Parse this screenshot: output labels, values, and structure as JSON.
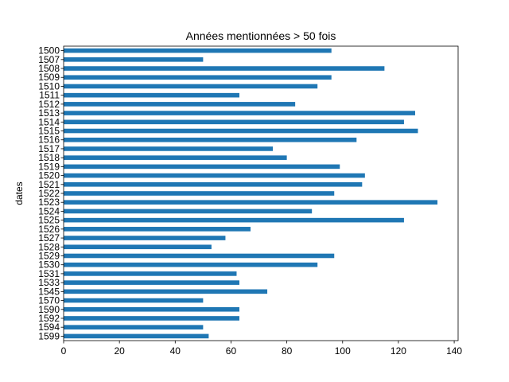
{
  "chart_data": {
    "type": "bar",
    "orientation": "horizontal",
    "title": "Années mentionnées > 50 fois",
    "ylabel": "dates",
    "xlabel": "",
    "xlim": [
      0,
      141.4
    ],
    "xticks": [
      0,
      20,
      40,
      60,
      80,
      100,
      120,
      140
    ],
    "categories": [
      "1500",
      "1507",
      "1508",
      "1509",
      "1510",
      "1511",
      "1512",
      "1513",
      "1514",
      "1515",
      "1516",
      "1517",
      "1518",
      "1519",
      "1520",
      "1521",
      "1522",
      "1523",
      "1524",
      "1525",
      "1526",
      "1527",
      "1528",
      "1529",
      "1530",
      "1531",
      "1533",
      "1545",
      "1570",
      "1590",
      "1592",
      "1594",
      "1599"
    ],
    "values": [
      96,
      50,
      115,
      96,
      91,
      63,
      83,
      126,
      122,
      127,
      105,
      75,
      80,
      99,
      108,
      107,
      97,
      134,
      89,
      122,
      67,
      58,
      53,
      97,
      91,
      62,
      63,
      73,
      50,
      63,
      63,
      50,
      52
    ],
    "color": "#1f77b4",
    "grid": false,
    "legend": false
  }
}
